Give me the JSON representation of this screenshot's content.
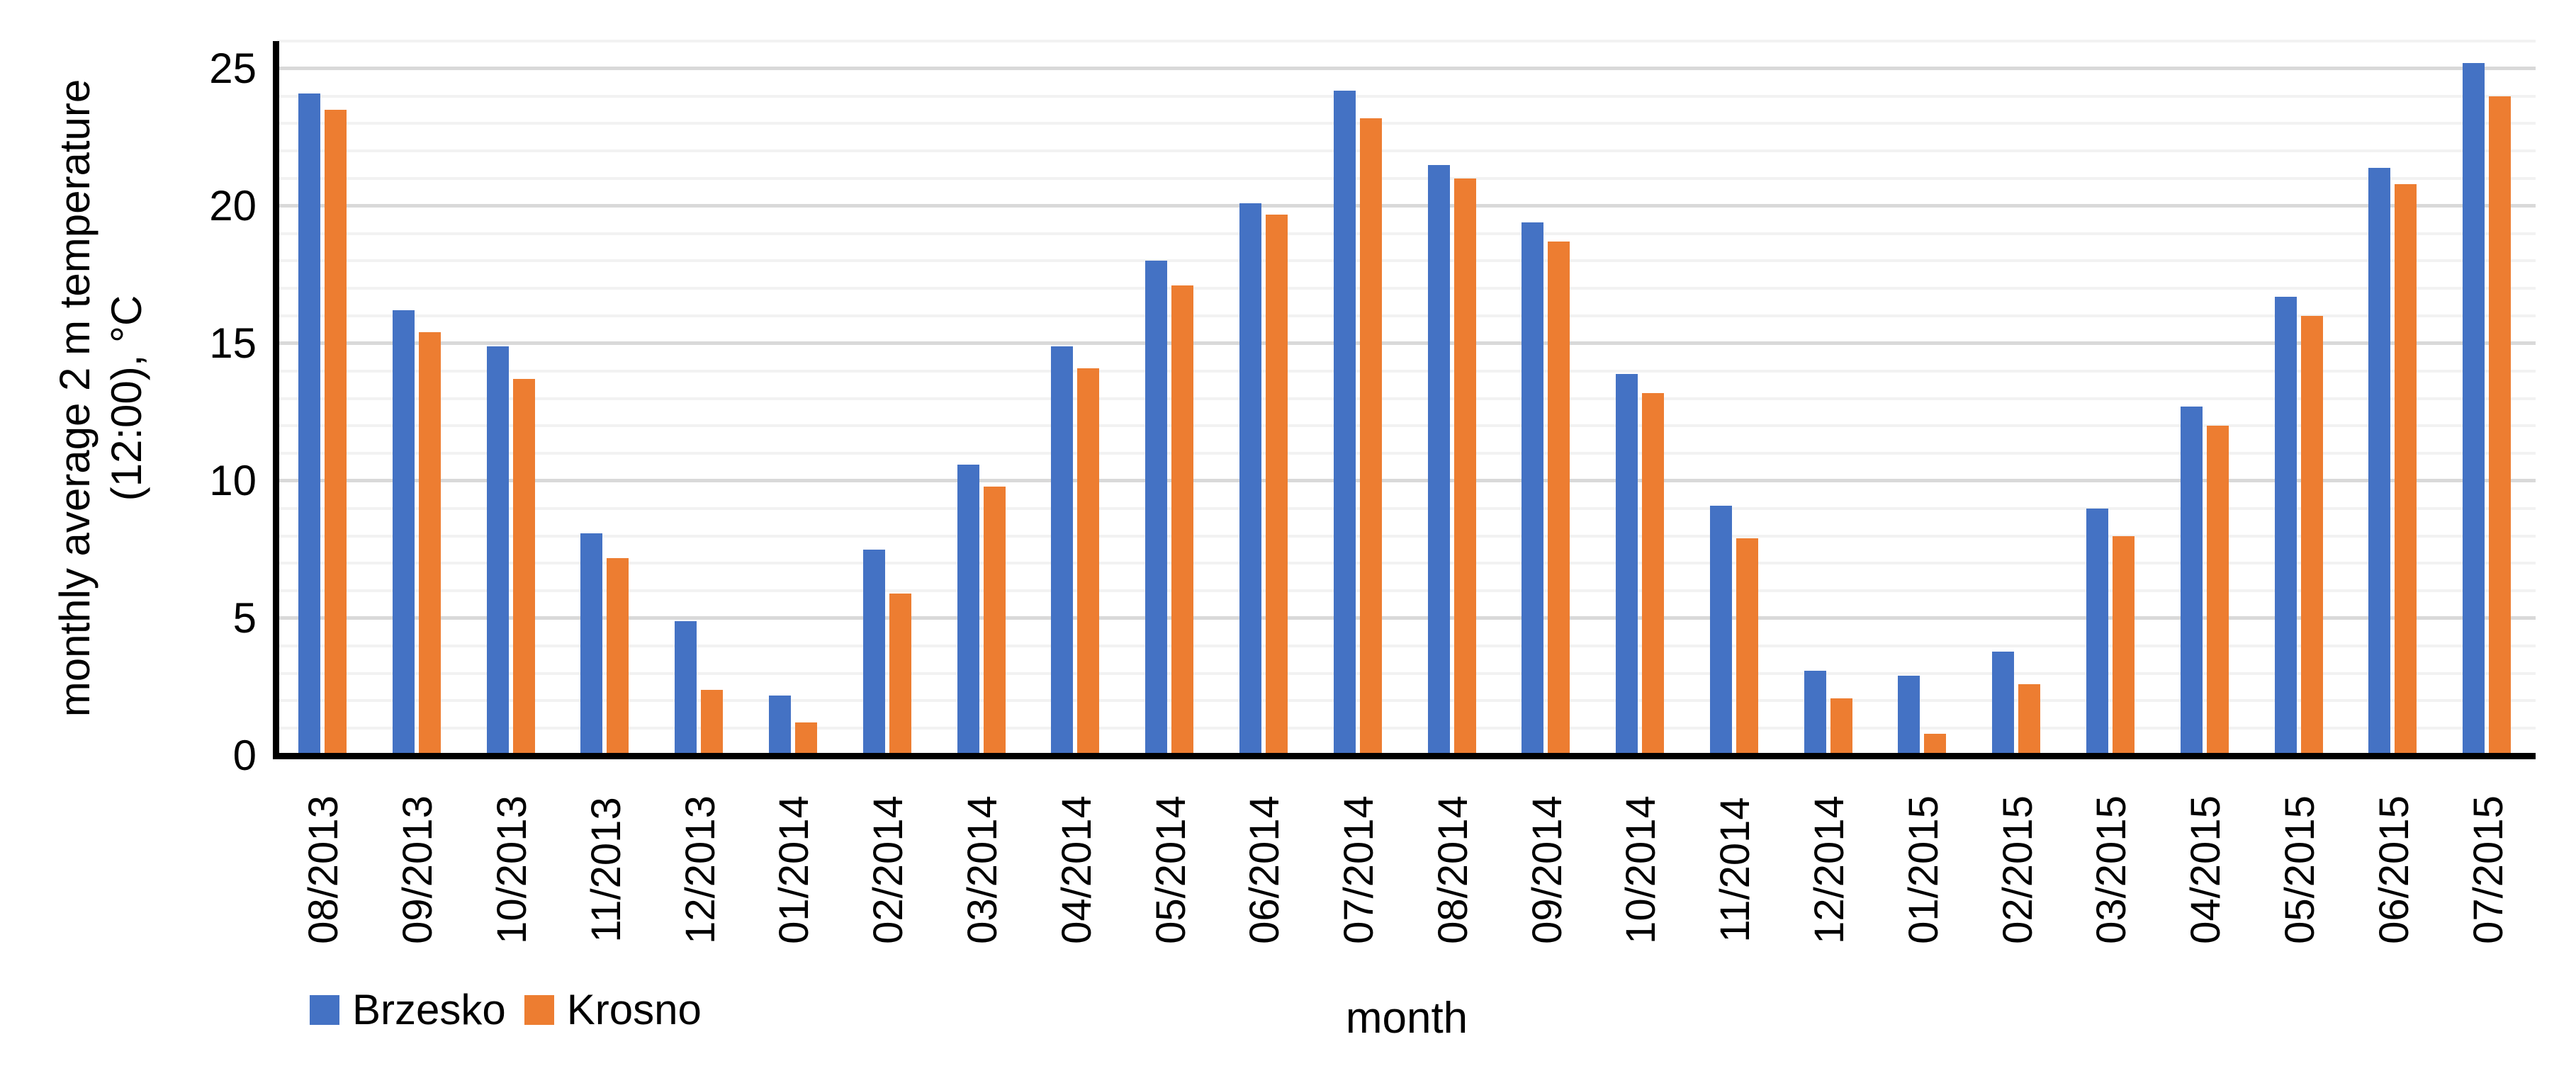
{
  "chart_data": {
    "type": "bar",
    "title": "",
    "xlabel": "month",
    "ylabel": "monthly average 2 m temperature (12:00), °C",
    "ylabel_lines": [
      "monthly average 2 m temperature",
      "(12:00), °C"
    ],
    "categories": [
      "08/2013",
      "09/2013",
      "10/2013",
      "11/2013",
      "12/2013",
      "01/2014",
      "02/2014",
      "03/2014",
      "04/2014",
      "05/2014",
      "06/2014",
      "07/2014",
      "08/2014",
      "09/2014",
      "10/2014",
      "11/2014",
      "12/2014",
      "01/2015",
      "02/2015",
      "03/2015",
      "04/2015",
      "05/2015",
      "06/2015",
      "07/2015"
    ],
    "series": [
      {
        "name": "Brzesko",
        "color": "#4472C4",
        "values": [
          24.1,
          16.2,
          14.9,
          8.1,
          4.9,
          2.2,
          7.5,
          10.6,
          14.9,
          18.0,
          20.1,
          24.2,
          21.5,
          19.4,
          13.9,
          9.1,
          3.1,
          2.9,
          3.8,
          9.0,
          12.7,
          16.7,
          21.4,
          25.2
        ]
      },
      {
        "name": "Krosno",
        "color": "#ED7D31",
        "values": [
          23.5,
          15.4,
          13.7,
          7.2,
          2.4,
          1.2,
          5.9,
          9.8,
          14.1,
          17.1,
          19.7,
          23.2,
          21.0,
          18.7,
          13.2,
          7.9,
          2.1,
          0.8,
          2.6,
          8.0,
          12.0,
          16.0,
          20.8,
          24.0
        ]
      }
    ],
    "ylim": [
      0,
      26
    ],
    "yticks": [
      0,
      5,
      10,
      15,
      20,
      25
    ],
    "minor_unit": 1,
    "major_unit": 5,
    "grid": true,
    "legend_position": "bottom-left",
    "axis_color": "#000000",
    "minor_grid_color": "#F2F2F2",
    "major_grid_color": "#D9D9D9"
  }
}
